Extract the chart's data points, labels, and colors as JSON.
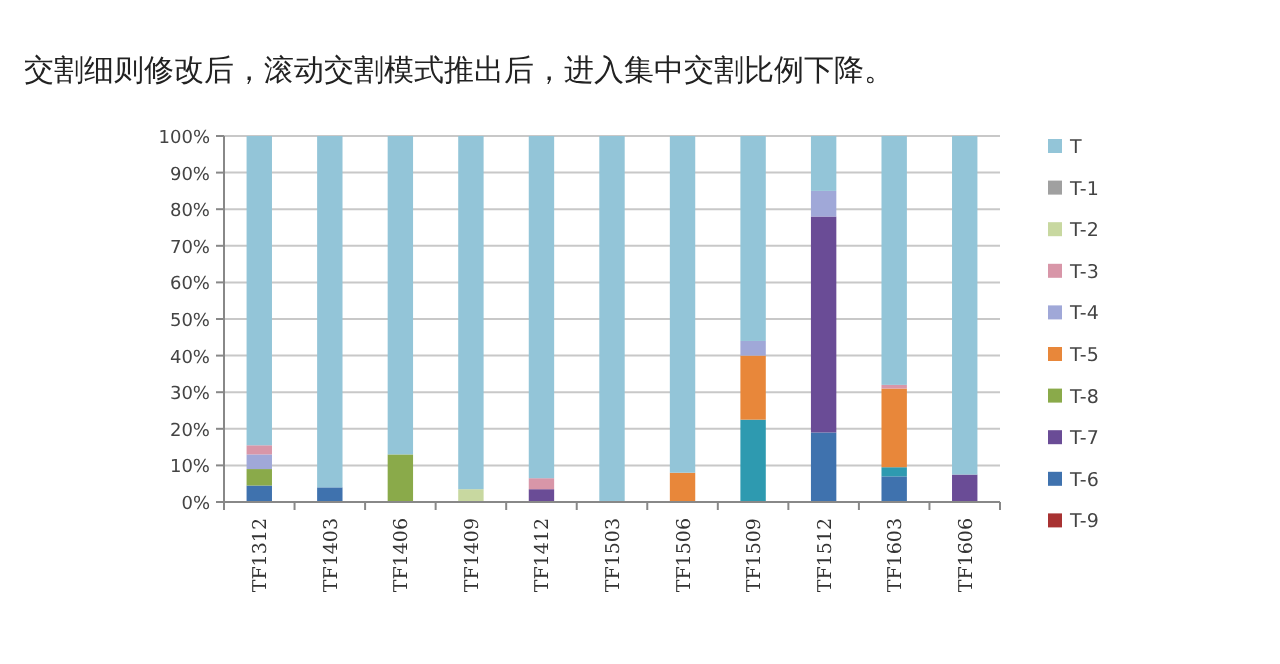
{
  "chart_data": {
    "type": "bar",
    "stacked": true,
    "title": "交割细则修改后，滚动交割模式推出后，进入集中交割比例下降。",
    "categories": [
      "TF1312",
      "TF1403",
      "TF1406",
      "TF1409",
      "TF1412",
      "TF1503",
      "TF1506",
      "TF1509",
      "TF1512",
      "TF1603",
      "TF1606"
    ],
    "series": [
      {
        "name": "T-9",
        "color": "#a83232",
        "values": [
          0,
          0,
          0,
          0,
          0,
          0,
          0,
          0,
          0,
          0,
          0
        ]
      },
      {
        "name": "T-6",
        "color": "#3f72ae",
        "values": [
          4.5,
          4,
          0,
          0,
          0,
          0,
          0,
          0,
          19,
          7,
          0
        ]
      },
      {
        "color": "#2e9ab0",
        "values": [
          0,
          0,
          0,
          0,
          0,
          0,
          0,
          22.5,
          0,
          2.5,
          0
        ]
      },
      {
        "name": "T-7",
        "color": "#6a4c96",
        "values": [
          0,
          0,
          0,
          0,
          3.5,
          0,
          0,
          0,
          59,
          0,
          7.5
        ]
      },
      {
        "name": "T-8",
        "color": "#8aaa4a",
        "values": [
          4.5,
          0,
          13,
          0,
          0,
          0,
          0,
          0,
          0,
          0,
          0
        ]
      },
      {
        "name": "T-5",
        "color": "#e8873a",
        "values": [
          0,
          0,
          0,
          0,
          0,
          0,
          8,
          17.5,
          0,
          21.5,
          0
        ]
      },
      {
        "name": "T-4",
        "color": "#a0a8d8",
        "values": [
          4,
          0,
          0,
          0,
          0,
          0,
          0,
          4,
          7,
          0,
          0
        ]
      },
      {
        "name": "T-3",
        "color": "#d896a8",
        "values": [
          2.5,
          0,
          0,
          0,
          3,
          0,
          0,
          0,
          0,
          1,
          0
        ]
      },
      {
        "name": "T-2",
        "color": "#c8d8a0",
        "values": [
          0,
          0,
          0,
          3.5,
          0,
          0,
          0,
          0,
          0,
          0,
          0
        ]
      },
      {
        "name": "T-1",
        "color": "#a0a0a0",
        "values": [
          0,
          0,
          0,
          0,
          0,
          0,
          0,
          0,
          0,
          0,
          0
        ]
      },
      {
        "name": "T",
        "color": "#93c5d8",
        "values": [
          84.5,
          96,
          87,
          96.5,
          93.5,
          100,
          92,
          56,
          15,
          68,
          92.5
        ]
      }
    ],
    "ylim": [
      0,
      100
    ],
    "yticks": [
      {
        "value": 0,
        "label": "0%"
      },
      {
        "value": 10,
        "label": "10%"
      },
      {
        "value": 20,
        "label": "20%"
      },
      {
        "value": 30,
        "label": "30%"
      },
      {
        "value": 40,
        "label": "40%"
      },
      {
        "value": 50,
        "label": "50%"
      },
      {
        "value": 60,
        "label": "60%"
      },
      {
        "value": 70,
        "label": "70%"
      },
      {
        "value": 80,
        "label": "80%"
      },
      {
        "value": 90,
        "label": "90%"
      },
      {
        "value": 100,
        "label": "100%"
      }
    ],
    "grid": "y",
    "legend": "right"
  }
}
